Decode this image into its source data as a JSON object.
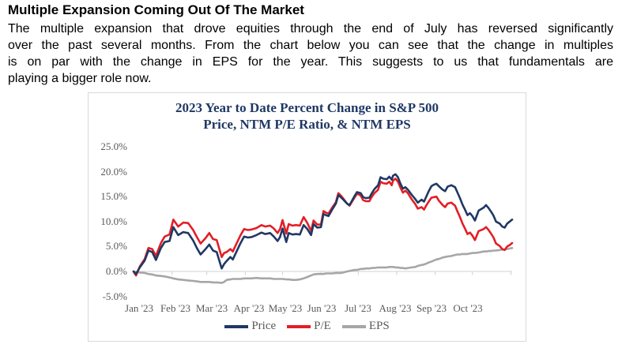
{
  "page": {
    "heading": "Multiple Expansion Coming Out Of The Market",
    "paragraph_lines": [
      "The multiple expansion that drove equities through the end of July has reversed significantly",
      "over the past several months. From the chart below you can see that the change in multiples",
      "is on par with the change in EPS for the year. This suggests to us that fundamentals are",
      "playing a bigger role now."
    ]
  },
  "chart_data": {
    "type": "line",
    "title_line1": "2023 Year to Date Percent Change in S&P 500",
    "title_line2": "Price, NTM P/E Ratio, & NTM EPS",
    "title_color": "#1F3864",
    "axis_color": "#D0D0D0",
    "label_color": "#595959",
    "grid": "off",
    "legend_position": "bottom",
    "ylim": [
      -5,
      25
    ],
    "y_tick_labels": [
      "25.0%",
      "20.0%",
      "15.0%",
      "10.0%",
      "5.0%",
      "0.0%",
      "-5.0%"
    ],
    "y_tick_values": [
      25,
      20,
      15,
      10,
      5,
      0,
      -5
    ],
    "x_unit": "day of year 2023",
    "x_range": [
      1,
      306
    ],
    "x_tick_labels": [
      "Jan '23",
      "Feb '23",
      "Mar '23",
      "Apr '23",
      "May '23",
      "Jun '23",
      "Jul '23",
      "Aug '23",
      "Sep '23",
      "Oct '23"
    ],
    "month_start_days": [
      1,
      32,
      60,
      91,
      121,
      152,
      182,
      213,
      244,
      274,
      305
    ],
    "legend": [
      {
        "name": "Price",
        "color": "#1F3864"
      },
      {
        "name": "P/E",
        "color": "#E21F26"
      },
      {
        "name": "EPS",
        "color": "#A6A6A6"
      }
    ],
    "x": [
      1,
      3,
      6,
      10,
      13,
      16,
      19,
      23,
      26,
      30,
      33,
      37,
      41,
      45,
      49,
      52,
      55,
      59,
      62,
      65,
      68,
      72,
      74,
      76,
      79,
      81,
      83,
      87,
      90,
      93,
      96,
      100,
      104,
      107,
      111,
      114,
      117,
      119,
      121,
      124,
      126,
      129,
      132,
      135,
      138,
      141,
      144,
      146,
      149,
      152,
      154,
      156,
      158,
      161,
      164,
      166,
      168,
      170,
      173,
      175,
      177,
      179,
      181,
      184,
      186,
      188,
      191,
      193,
      195,
      198,
      200,
      202,
      205,
      207,
      209,
      210,
      212,
      214,
      216,
      218,
      220,
      222,
      225,
      228,
      230,
      233,
      235,
      237,
      239,
      241,
      243,
      245,
      247,
      250,
      252,
      254,
      257,
      260,
      262,
      264,
      266,
      268,
      270,
      272,
      274,
      276,
      279,
      283,
      285,
      287,
      289,
      291,
      293,
      296,
      298,
      300,
      302,
      304,
      306
    ],
    "series": [
      {
        "name": "Price",
        "color": "#1F3864",
        "unit": "percent YTD change",
        "values": [
          0,
          -0.5,
          0.8,
          2.2,
          4.2,
          3.9,
          2.3,
          4.7,
          5.9,
          6.1,
          8.9,
          7.3,
          7.9,
          7.7,
          6.2,
          4.7,
          3.4,
          4.5,
          5.4,
          4.2,
          3.9,
          0.6,
          1.5,
          2.1,
          2.9,
          2.4,
          3.5,
          5.6,
          7.0,
          6.8,
          6.9,
          7.3,
          7.8,
          7.5,
          7.7,
          7.0,
          6.1,
          6.9,
          8.6,
          5.9,
          7.7,
          7.4,
          7.5,
          7.4,
          9.3,
          8.5,
          7.3,
          9.5,
          8.8,
          8.9,
          11.5,
          11.3,
          11.1,
          12.4,
          13.6,
          15.3,
          14.9,
          14.4,
          13.6,
          13.3,
          14.2,
          15.1,
          15.9,
          15.7,
          14.9,
          14.7,
          14.8,
          15.7,
          16.5,
          17.3,
          18.9,
          18.6,
          18.5,
          19.0,
          18.4,
          19.2,
          19.5,
          18.9,
          17.6,
          16.6,
          16.9,
          16.4,
          15.4,
          14.5,
          13.8,
          14.4,
          14.0,
          15.1,
          16.2,
          17.1,
          17.4,
          17.6,
          17.1,
          16.4,
          16.1,
          17.0,
          17.3,
          16.9,
          15.8,
          14.7,
          13.4,
          12.4,
          11.3,
          11.7,
          11.1,
          10.2,
          12.2,
          12.8,
          13.3,
          12.7,
          12.0,
          11.2,
          10.0,
          9.6,
          9.0,
          8.8,
          9.6,
          10.0,
          10.4
        ]
      },
      {
        "name": "P/E",
        "color": "#E21F26",
        "unit": "percent YTD change",
        "values": [
          0,
          -0.8,
          1.0,
          2.5,
          4.7,
          4.5,
          3.1,
          5.7,
          7.0,
          7.4,
          10.4,
          9.0,
          9.8,
          9.7,
          8.3,
          6.9,
          5.6,
          6.7,
          7.7,
          6.5,
          6.3,
          2.9,
          3.7,
          3.9,
          4.5,
          4.0,
          5.1,
          7.2,
          8.5,
          8.3,
          8.4,
          8.7,
          9.3,
          9.0,
          9.2,
          8.6,
          7.7,
          8.5,
          10.3,
          7.6,
          9.5,
          9.2,
          9.3,
          9.2,
          10.9,
          9.7,
          8.1,
          10.2,
          9.4,
          9.4,
          12.1,
          11.8,
          11.6,
          12.8,
          13.9,
          15.7,
          15.2,
          14.6,
          13.6,
          13.2,
          14.0,
          14.8,
          15.6,
          15.2,
          14.3,
          14.1,
          14.1,
          15.0,
          15.7,
          16.4,
          18.0,
          17.7,
          17.6,
          18.0,
          17.3,
          18.2,
          18.6,
          18.0,
          16.8,
          15.8,
          16.2,
          15.7,
          14.5,
          13.5,
          12.6,
          12.9,
          12.4,
          13.3,
          14.1,
          14.8,
          14.9,
          15.0,
          14.2,
          13.3,
          12.9,
          13.6,
          13.8,
          13.2,
          12.0,
          10.9,
          9.6,
          8.6,
          7.5,
          7.8,
          7.2,
          6.3,
          8.1,
          8.5,
          8.9,
          8.3,
          7.6,
          6.8,
          5.6,
          5.1,
          4.5,
          4.3,
          5.0,
          5.3,
          5.7
        ]
      },
      {
        "name": "EPS",
        "color": "#A6A6A6",
        "unit": "percent YTD change",
        "values": [
          0,
          -0.1,
          -0.2,
          -0.3,
          -0.5,
          -0.6,
          -0.8,
          -0.9,
          -1.0,
          -1.2,
          -1.4,
          -1.6,
          -1.7,
          -1.8,
          -1.9,
          -2.0,
          -2.1,
          -2.1,
          -2.1,
          -2.2,
          -2.2,
          -2.3,
          -2.1,
          -1.7,
          -1.6,
          -1.5,
          -1.5,
          -1.5,
          -1.4,
          -1.4,
          -1.4,
          -1.3,
          -1.4,
          -1.4,
          -1.4,
          -1.5,
          -1.5,
          -1.5,
          -1.5,
          -1.6,
          -1.6,
          -1.7,
          -1.7,
          -1.6,
          -1.4,
          -1.1,
          -0.8,
          -0.6,
          -0.5,
          -0.5,
          -0.5,
          -0.4,
          -0.4,
          -0.4,
          -0.3,
          -0.3,
          -0.3,
          -0.2,
          0.0,
          0.1,
          0.2,
          0.3,
          0.3,
          0.5,
          0.5,
          0.6,
          0.6,
          0.7,
          0.7,
          0.8,
          0.8,
          0.8,
          0.8,
          0.9,
          0.9,
          0.9,
          0.8,
          0.8,
          0.7,
          0.7,
          0.6,
          0.7,
          0.8,
          0.9,
          1.1,
          1.3,
          1.4,
          1.6,
          1.8,
          2.0,
          2.2,
          2.4,
          2.5,
          2.8,
          2.9,
          3.0,
          3.1,
          3.3,
          3.4,
          3.4,
          3.5,
          3.5,
          3.5,
          3.6,
          3.7,
          3.7,
          3.8,
          4.0,
          4.0,
          4.1,
          4.1,
          4.2,
          4.2,
          4.3,
          4.4,
          4.4,
          4.5,
          4.6,
          4.7
        ]
      }
    ]
  }
}
